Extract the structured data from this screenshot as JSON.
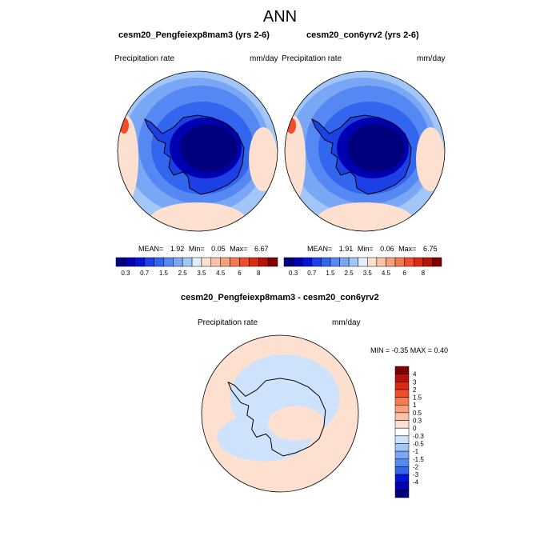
{
  "page_title": "ANN",
  "colors": {
    "blue_scale": [
      "#00007f",
      "#0000b3",
      "#0013d9",
      "#1a40e6",
      "#3366ee",
      "#5588f2",
      "#7aa7f5",
      "#a3c6f8",
      "#cfe2fb"
    ],
    "red_scale": [
      "#fde0cf",
      "#fcc4a6",
      "#f9a07a",
      "#f57a50",
      "#ee4f2a",
      "#d92b12",
      "#b31407",
      "#7f0000"
    ],
    "neutral": "#ffffff",
    "coast": "#000000"
  },
  "chart_data": [
    {
      "type": "heatmap",
      "projection": "south-polar-stereographic",
      "title": "cesm20_Pengfeiexp8mam3 (yrs 2-6)",
      "variable": "Precipitation rate",
      "units": "mm/day",
      "stats": {
        "mean_label": "MEAN=",
        "mean": "1.92",
        "min_label": "Min=",
        "min": "0.05",
        "max_label": "Max=",
        "max": "6.67"
      },
      "colorbar_levels": [
        "0.3",
        "0.7",
        "1.5",
        "2.5",
        "3.5",
        "4.5",
        "6",
        "8"
      ]
    },
    {
      "type": "heatmap",
      "projection": "south-polar-stereographic",
      "title": "cesm20_con6yrv2 (yrs 2-6)",
      "variable": "Precipitation rate",
      "units": "mm/day",
      "stats": {
        "mean_label": "MEAN=",
        "mean": "1.91",
        "min_label": "Min=",
        "min": "0.06",
        "max_label": "Max=",
        "max": "6.75"
      },
      "colorbar_levels": [
        "0.3",
        "0.7",
        "1.5",
        "2.5",
        "3.5",
        "4.5",
        "6",
        "8"
      ]
    },
    {
      "type": "heatmap",
      "projection": "south-polar-stereographic",
      "title": "cesm20_Pengfeiexp8mam3 - cesm20_con6yrv2",
      "variable": "Precipitation rate",
      "units": "mm/day",
      "stats_text": "MIN =  -0.35 MAX =   0.40",
      "colorbar_levels": [
        "4",
        "3",
        "2",
        "1.5",
        "1",
        "0.5",
        "0.3",
        "0",
        "-0.3",
        "-0.5",
        "-1",
        "-1.5",
        "-2",
        "-3",
        "-4"
      ]
    }
  ]
}
